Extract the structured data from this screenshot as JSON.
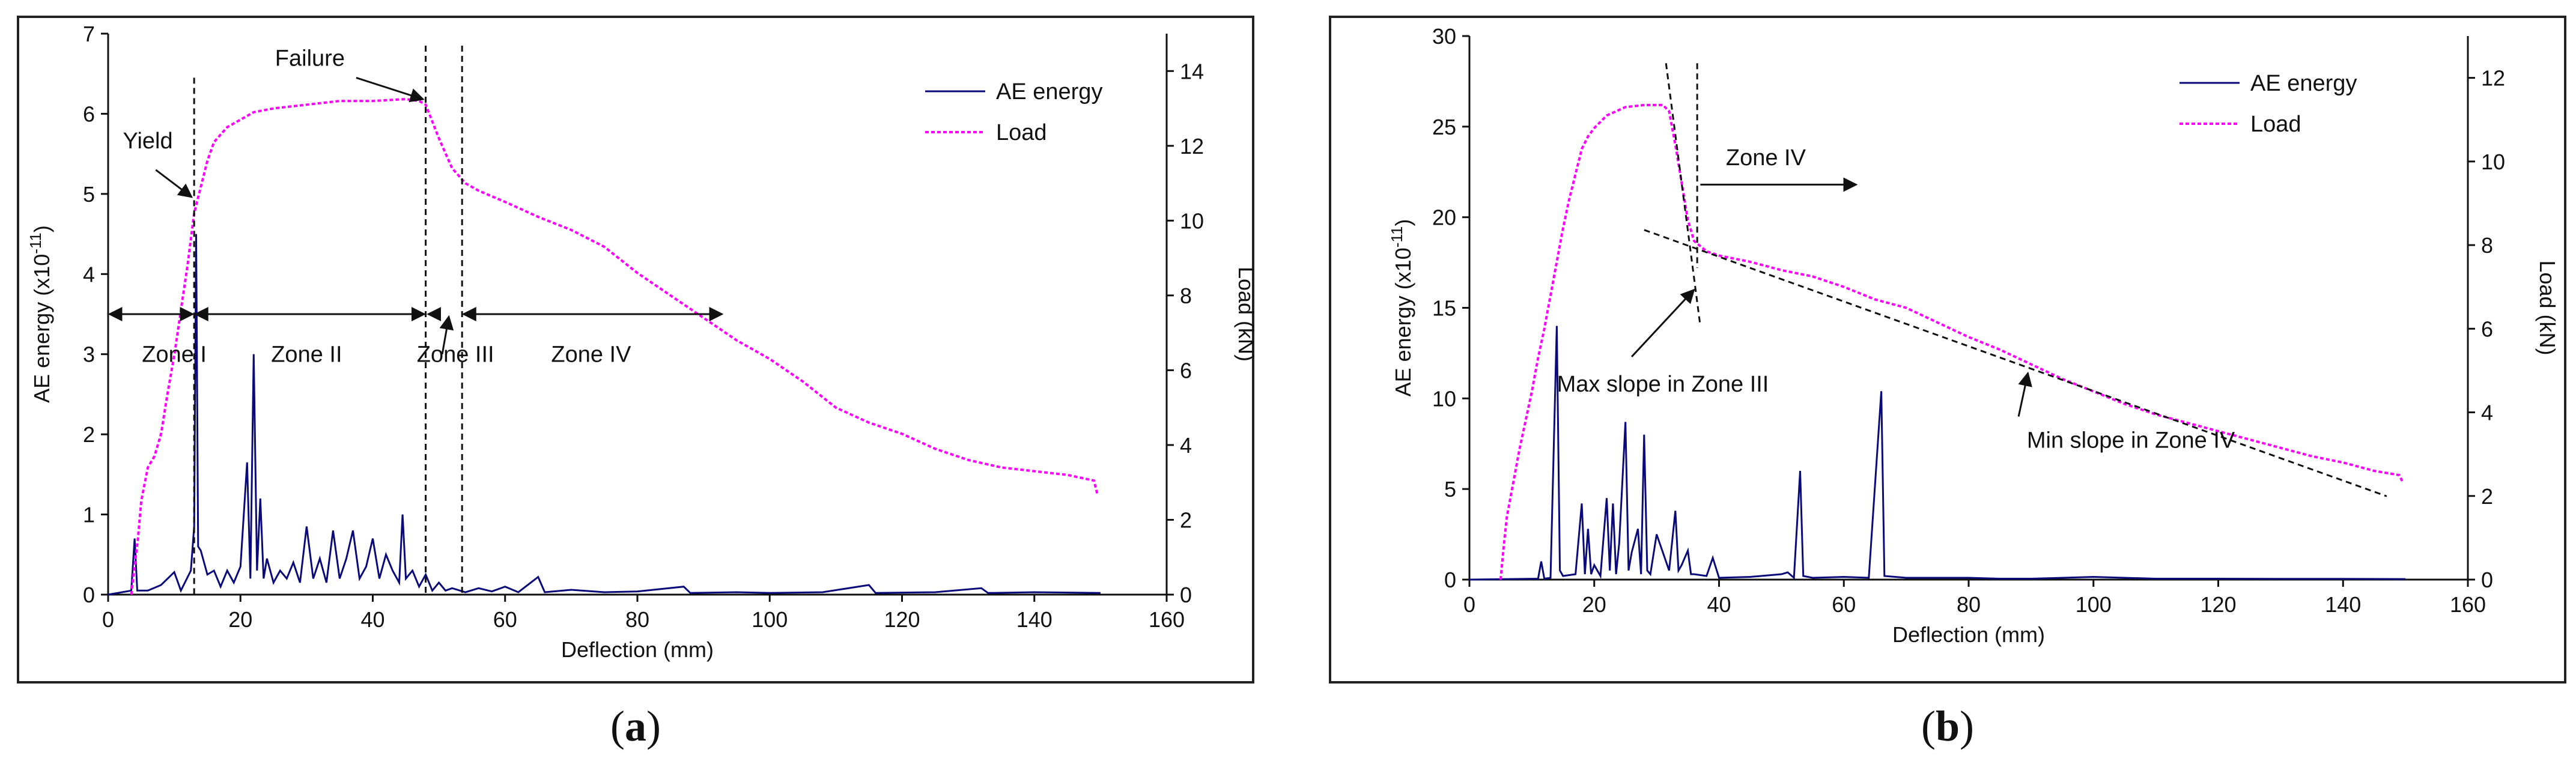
{
  "colors": {
    "ae": "#0a0a7a",
    "load": "#ff00ff",
    "axis": "#111111"
  },
  "chart_data": [
    {
      "type": "line",
      "panel": "a",
      "caption": "a",
      "xlabel": "Deflection (mm)",
      "ylabel_left": "AE energy (x10",
      "ylabel_left_sup": "-11",
      "ylabel_left_end": ")",
      "ylabel_right": "Load (kN)",
      "xlim": [
        0,
        160
      ],
      "ylim_left": [
        0,
        7
      ],
      "ylim_right": [
        0,
        15
      ],
      "xticks": [
        "0",
        "20",
        "40",
        "60",
        "80",
        "100",
        "120",
        "140",
        "160"
      ],
      "yticks_left": [
        "0",
        "1",
        "2",
        "3",
        "4",
        "5",
        "6",
        "7"
      ],
      "yticks_right": [
        "0",
        "2",
        "4",
        "6",
        "8",
        "10",
        "12",
        "14"
      ],
      "legend": [
        "AE energy",
        "Load"
      ],
      "series": [
        {
          "name": "AE energy",
          "axis": "left",
          "style": "solid",
          "points": [
            [
              0,
              0
            ],
            [
              3.5,
              0.05
            ],
            [
              4,
              0.7
            ],
            [
              4.4,
              0.05
            ],
            [
              6,
              0.05
            ],
            [
              8,
              0.12
            ],
            [
              10,
              0.28
            ],
            [
              11,
              0.05
            ],
            [
              12.5,
              0.3
            ],
            [
              13,
              0.85
            ],
            [
              13.3,
              4.5
            ],
            [
              13.6,
              0.6
            ],
            [
              14,
              0.55
            ],
            [
              15,
              0.25
            ],
            [
              16,
              0.3
            ],
            [
              17,
              0.1
            ],
            [
              18,
              0.3
            ],
            [
              19,
              0.15
            ],
            [
              20,
              0.35
            ],
            [
              21,
              1.65
            ],
            [
              21.5,
              0.2
            ],
            [
              22,
              3.0
            ],
            [
              22.5,
              0.3
            ],
            [
              23,
              1.2
            ],
            [
              23.5,
              0.2
            ],
            [
              24,
              0.45
            ],
            [
              25,
              0.15
            ],
            [
              26,
              0.3
            ],
            [
              27,
              0.2
            ],
            [
              28,
              0.4
            ],
            [
              29,
              0.15
            ],
            [
              30,
              0.85
            ],
            [
              31,
              0.2
            ],
            [
              32,
              0.45
            ],
            [
              33,
              0.15
            ],
            [
              34,
              0.8
            ],
            [
              35,
              0.2
            ],
            [
              36,
              0.45
            ],
            [
              37,
              0.8
            ],
            [
              38,
              0.2
            ],
            [
              39,
              0.35
            ],
            [
              40,
              0.7
            ],
            [
              41,
              0.2
            ],
            [
              42,
              0.5
            ],
            [
              43,
              0.3
            ],
            [
              44,
              0.15
            ],
            [
              44.5,
              1.0
            ],
            [
              45,
              0.2
            ],
            [
              46,
              0.3
            ],
            [
              47,
              0.1
            ],
            [
              48,
              0.25
            ],
            [
              49,
              0.05
            ],
            [
              50,
              0.15
            ],
            [
              51,
              0.05
            ],
            [
              52,
              0.08
            ],
            [
              54,
              0.03
            ],
            [
              56,
              0.08
            ],
            [
              58,
              0.04
            ],
            [
              60,
              0.1
            ],
            [
              62,
              0.03
            ],
            [
              65,
              0.22
            ],
            [
              66,
              0.03
            ],
            [
              70,
              0.06
            ],
            [
              75,
              0.03
            ],
            [
              80,
              0.04
            ],
            [
              87,
              0.1
            ],
            [
              88,
              0.02
            ],
            [
              95,
              0.03
            ],
            [
              100,
              0.02
            ],
            [
              108,
              0.03
            ],
            [
              115,
              0.12
            ],
            [
              116,
              0.02
            ],
            [
              125,
              0.03
            ],
            [
              132,
              0.08
            ],
            [
              133,
              0.02
            ],
            [
              140,
              0.03
            ],
            [
              150,
              0.02
            ]
          ]
        },
        {
          "name": "Load",
          "axis": "right",
          "style": "dotted",
          "points": [
            [
              3.5,
              0
            ],
            [
              4.5,
              1.5
            ],
            [
              5,
              2.5
            ],
            [
              6,
              3.4
            ],
            [
              7,
              3.7
            ],
            [
              8,
              4.3
            ],
            [
              9,
              5.4
            ],
            [
              10,
              6.4
            ],
            [
              11,
              7.6
            ],
            [
              12,
              8.8
            ],
            [
              13,
              10.2
            ],
            [
              14,
              10.9
            ],
            [
              15,
              11.6
            ],
            [
              16,
              12.1
            ],
            [
              17,
              12.3
            ],
            [
              18,
              12.5
            ],
            [
              20,
              12.7
            ],
            [
              22,
              12.9
            ],
            [
              25,
              13.0
            ],
            [
              30,
              13.1
            ],
            [
              35,
              13.2
            ],
            [
              40,
              13.2
            ],
            [
              45,
              13.25
            ],
            [
              47,
              13.2
            ],
            [
              48,
              13.1
            ],
            [
              50,
              12.2
            ],
            [
              52,
              11.4
            ],
            [
              54,
              11.0
            ],
            [
              56,
              10.8
            ],
            [
              60,
              10.5
            ],
            [
              65,
              10.1
            ],
            [
              70,
              9.75
            ],
            [
              75,
              9.3
            ],
            [
              80,
              8.6
            ],
            [
              85,
              8.0
            ],
            [
              90,
              7.4
            ],
            [
              95,
              6.8
            ],
            [
              100,
              6.3
            ],
            [
              105,
              5.7
            ],
            [
              110,
              5.0
            ],
            [
              115,
              4.6
            ],
            [
              120,
              4.3
            ],
            [
              125,
              3.9
            ],
            [
              130,
              3.6
            ],
            [
              135,
              3.4
            ],
            [
              140,
              3.3
            ],
            [
              145,
              3.2
            ],
            [
              149,
              3.05
            ],
            [
              149.5,
              2.7
            ]
          ]
        }
      ],
      "annotations": {
        "yield_label": "Yield",
        "failure_label": "Failure",
        "zones": [
          "Zone I",
          "Zone II",
          "Zone III",
          "Zone IV"
        ],
        "yield_x": 13,
        "failure_x": 48,
        "zone_boundaries_x": [
          0,
          13,
          48,
          53.5,
          93
        ],
        "zone_arrow_y": 3.5,
        "yield_point": [
          13,
          4.9
        ],
        "failure_point": [
          48,
          6.15
        ]
      }
    },
    {
      "type": "line",
      "panel": "b",
      "caption": "b",
      "xlabel": "Deflection (mm)",
      "ylabel_left": "AE energy (x10",
      "ylabel_left_sup": "-11",
      "ylabel_left_end": ")",
      "ylabel_right": "Load (kN)",
      "xlim": [
        0,
        160
      ],
      "ylim_left": [
        0,
        30
      ],
      "ylim_right": [
        0,
        13
      ],
      "xticks": [
        "0",
        "20",
        "40",
        "60",
        "80",
        "100",
        "120",
        "140",
        "160"
      ],
      "yticks_left": [
        "0",
        "5",
        "10",
        "15",
        "20",
        "25",
        "30"
      ],
      "yticks_right": [
        "0",
        "2",
        "4",
        "6",
        "8",
        "10",
        "12"
      ],
      "legend": [
        "AE energy",
        "Load"
      ],
      "series": [
        {
          "name": "AE energy",
          "axis": "left",
          "style": "solid",
          "points": [
            [
              0,
              0
            ],
            [
              11,
              0.05
            ],
            [
              11.5,
              1.0
            ],
            [
              12,
              0.05
            ],
            [
              13,
              0.1
            ],
            [
              14,
              14.0
            ],
            [
              14.5,
              0.5
            ],
            [
              15,
              0.2
            ],
            [
              17,
              0.3
            ],
            [
              18,
              4.2
            ],
            [
              18.5,
              0.3
            ],
            [
              19,
              2.8
            ],
            [
              19.5,
              0.3
            ],
            [
              20,
              0.8
            ],
            [
              21,
              0.2
            ],
            [
              22,
              4.5
            ],
            [
              22.5,
              0.5
            ],
            [
              23,
              4.2
            ],
            [
              23.5,
              0.3
            ],
            [
              24,
              2.0
            ],
            [
              25,
              8.7
            ],
            [
              25.5,
              0.5
            ],
            [
              26,
              1.5
            ],
            [
              27,
              2.8
            ],
            [
              27.5,
              0.3
            ],
            [
              28,
              8.0
            ],
            [
              28.5,
              0.5
            ],
            [
              29,
              0.3
            ],
            [
              30,
              2.5
            ],
            [
              31,
              1.5
            ],
            [
              32,
              0.5
            ],
            [
              33,
              3.8
            ],
            [
              33.5,
              0.5
            ],
            [
              34,
              0.8
            ],
            [
              35,
              1.6
            ],
            [
              35.5,
              0.3
            ],
            [
              36,
              0.3
            ],
            [
              38,
              0.2
            ],
            [
              39,
              1.2
            ],
            [
              40,
              0.1
            ],
            [
              45,
              0.15
            ],
            [
              50,
              0.3
            ],
            [
              51,
              0.4
            ],
            [
              52,
              0.1
            ],
            [
              53,
              6.0
            ],
            [
              53.5,
              0.2
            ],
            [
              55,
              0.1
            ],
            [
              60,
              0.15
            ],
            [
              64,
              0.1
            ],
            [
              66,
              10.4
            ],
            [
              66.5,
              0.2
            ],
            [
              70,
              0.1
            ],
            [
              75,
              0.1
            ],
            [
              80,
              0.1
            ],
            [
              85,
              0.05
            ],
            [
              90,
              0.05
            ],
            [
              100,
              0.15
            ],
            [
              110,
              0.05
            ],
            [
              120,
              0.05
            ],
            [
              130,
              0.04
            ],
            [
              140,
              0.04
            ],
            [
              150,
              0.03
            ]
          ]
        },
        {
          "name": "Load",
          "axis": "right",
          "style": "dotted",
          "points": [
            [
              5,
              0
            ],
            [
              5.5,
              0.8
            ],
            [
              6,
              1.5
            ],
            [
              7,
              2.3
            ],
            [
              8,
              3.1
            ],
            [
              9,
              3.8
            ],
            [
              10,
              4.5
            ],
            [
              11,
              5.3
            ],
            [
              12,
              6.0
            ],
            [
              13,
              6.8
            ],
            [
              14,
              7.6
            ],
            [
              15,
              8.4
            ],
            [
              16,
              9.1
            ],
            [
              17,
              9.7
            ],
            [
              18,
              10.3
            ],
            [
              19,
              10.6
            ],
            [
              20,
              10.8
            ],
            [
              22,
              11.1
            ],
            [
              25,
              11.3
            ],
            [
              28,
              11.35
            ],
            [
              31,
              11.35
            ],
            [
              32,
              11.2
            ],
            [
              33,
              10.4
            ],
            [
              34,
              9.5
            ],
            [
              35,
              8.6
            ],
            [
              36,
              8.1
            ],
            [
              38,
              7.85
            ],
            [
              40,
              7.75
            ],
            [
              45,
              7.6
            ],
            [
              50,
              7.4
            ],
            [
              55,
              7.25
            ],
            [
              60,
              7.0
            ],
            [
              65,
              6.7
            ],
            [
              70,
              6.5
            ],
            [
              75,
              6.15
            ],
            [
              80,
              5.8
            ],
            [
              85,
              5.5
            ],
            [
              90,
              5.15
            ],
            [
              95,
              4.8
            ],
            [
              100,
              4.5
            ],
            [
              105,
              4.2
            ],
            [
              110,
              3.95
            ],
            [
              115,
              3.75
            ],
            [
              120,
              3.55
            ],
            [
              125,
              3.35
            ],
            [
              130,
              3.15
            ],
            [
              135,
              2.95
            ],
            [
              140,
              2.8
            ],
            [
              145,
              2.6
            ],
            [
              149,
              2.5
            ],
            [
              149.5,
              2.35
            ]
          ]
        }
      ],
      "annotations": {
        "zone_label": "Zone IV",
        "max_slope_label": "Max slope in Zone III",
        "min_slope_label": "Min slope in Zone IV",
        "zone_divider_x": 36.5,
        "max_slope_line": [
          [
            31.5,
            28.5
          ],
          [
            37,
            14.0
          ]
        ],
        "min_slope_line": [
          [
            28,
            19.3
          ],
          [
            147,
            4.6
          ]
        ],
        "zone_arrow": [
          [
            37,
            21.8
          ],
          [
            62,
            21.8
          ]
        ]
      }
    }
  ]
}
